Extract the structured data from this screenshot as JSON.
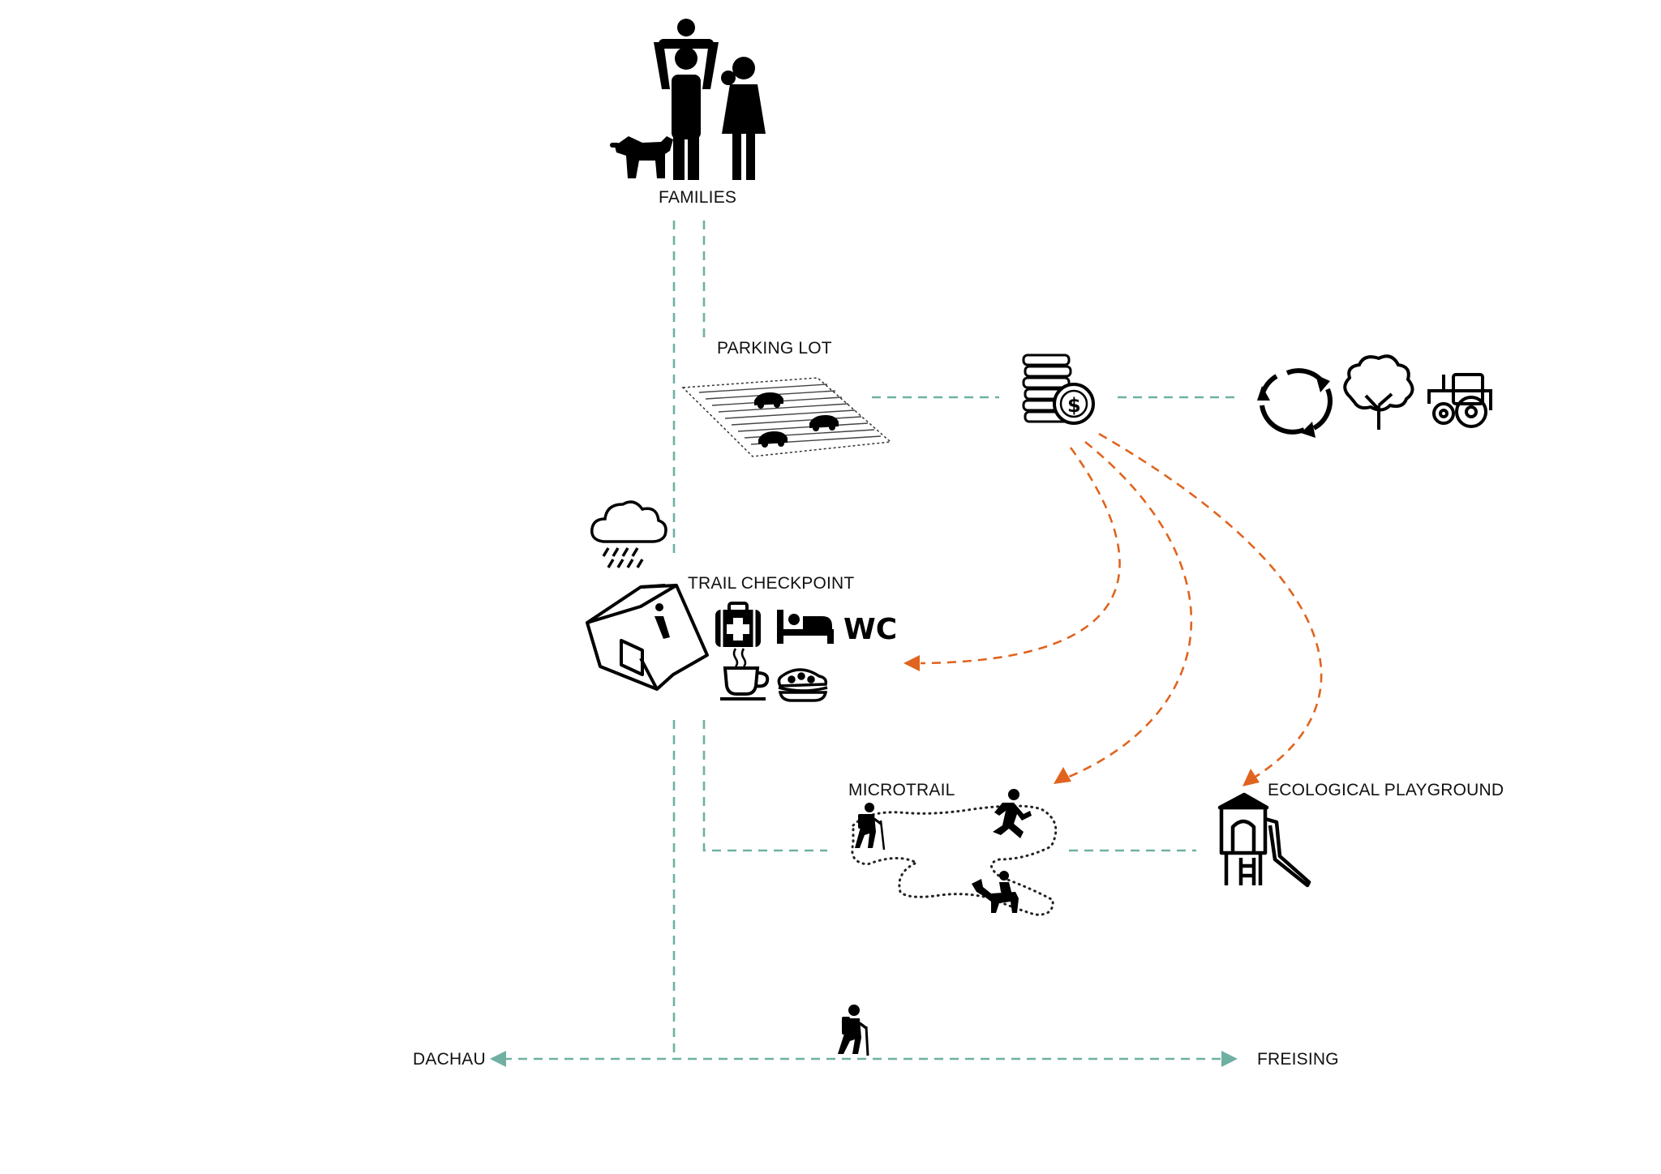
{
  "labels": {
    "families": "FAMILIES",
    "parking_lot": "PARKING LOT",
    "trail_checkpoint": "TRAIL CHECKPOINT",
    "wc": "WC",
    "microtrail": "MICROTRAIL",
    "ecological_playground": "ECOLOGICAL PLAYGROUND",
    "dachau": "DACHAU",
    "freising": "FREISING"
  },
  "icons": {
    "families": "family-with-dog-icon",
    "parking": "parking-lot-icon",
    "money": "coins-dollar-icon",
    "cycle": "recycle-arrows-icon",
    "tree": "tree-icon",
    "tractor": "tractor-icon",
    "weather": "rain-cloud-icon",
    "info_house": "info-house-icon",
    "first_aid": "first-aid-kit-icon",
    "bed": "bed-icon",
    "coffee": "coffee-cup-icon",
    "food": "sandwich-icon",
    "hiker": "hiker-icon",
    "runner": "runner-icon",
    "horse_rider": "horse-rider-icon",
    "playground": "playground-tower-icon"
  },
  "colors": {
    "connector": "#6fb0a3",
    "flow": "#e0641f",
    "ink": "#000000"
  }
}
